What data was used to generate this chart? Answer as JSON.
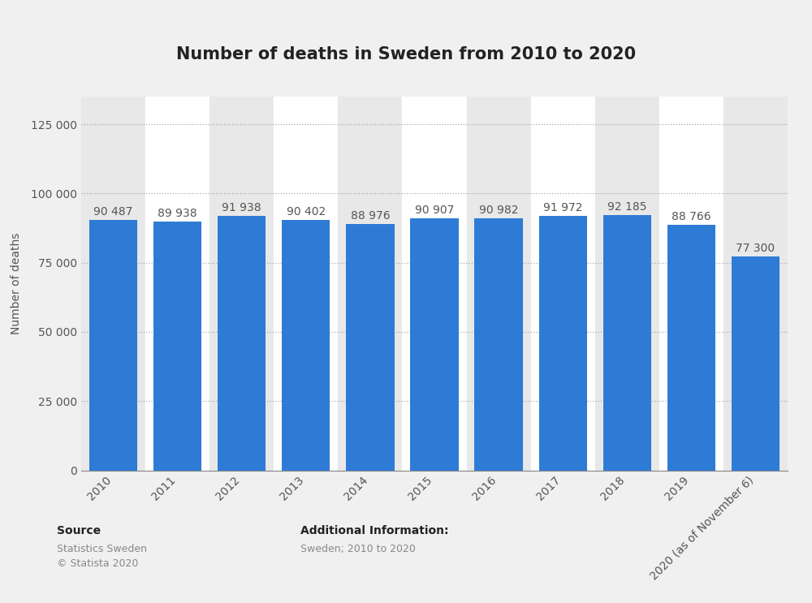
{
  "title": "Number of deaths in Sweden from 2010 to 2020",
  "categories": [
    "2010",
    "2011",
    "2012",
    "2013",
    "2014",
    "2015",
    "2016",
    "2017",
    "2018",
    "2019",
    "2020 (as of November 6)"
  ],
  "values": [
    90487,
    89938,
    91938,
    90402,
    88976,
    90907,
    90982,
    91972,
    92185,
    88766,
    77300
  ],
  "bar_labels": [
    "90 487",
    "89 938",
    "91 938",
    "90 402",
    "88 976",
    "90 907",
    "90 982",
    "91 972",
    "92 185",
    "88 766",
    "77 300"
  ],
  "bar_color": "#2e7bd6",
  "background_color": "#f0f0f0",
  "plot_bg_color": "#ffffff",
  "alt_col_color": "#e8e8e8",
  "ylabel": "Number of deaths",
  "ylim": [
    0,
    135000
  ],
  "yticks": [
    0,
    25000,
    50000,
    75000,
    100000,
    125000
  ],
  "ytick_labels": [
    "0",
    "25 000",
    "50 000",
    "75 000",
    "100 000",
    "125 000"
  ],
  "title_fontsize": 15,
  "label_fontsize": 10,
  "tick_fontsize": 10,
  "bar_label_fontsize": 10,
  "source_text": "Source",
  "source_line1": "Statistics Sweden",
  "source_line2": "© Statista 2020",
  "additional_text": "Additional Information:",
  "additional_line1": "Sweden; 2010 to 2020"
}
